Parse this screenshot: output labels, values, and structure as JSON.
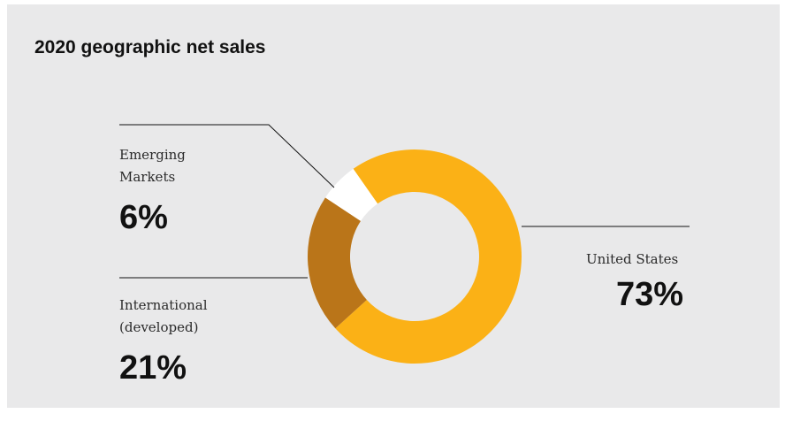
{
  "chart_data": {
    "type": "pie",
    "title": "2020 geographic net sales",
    "series": [
      {
        "name": "United States",
        "value": 73,
        "display": "73%",
        "color": "#fbb116"
      },
      {
        "name": "International\n(developed)",
        "value": 21,
        "display": "21%",
        "color": "#ba7519"
      },
      {
        "name": "Emerging\nMarkets",
        "value": 6,
        "display": "6%",
        "color": "#ffffff"
      }
    ],
    "donut": true
  },
  "colors": {
    "panel_background": "#e9e9ea",
    "leader_line": "#111111"
  }
}
